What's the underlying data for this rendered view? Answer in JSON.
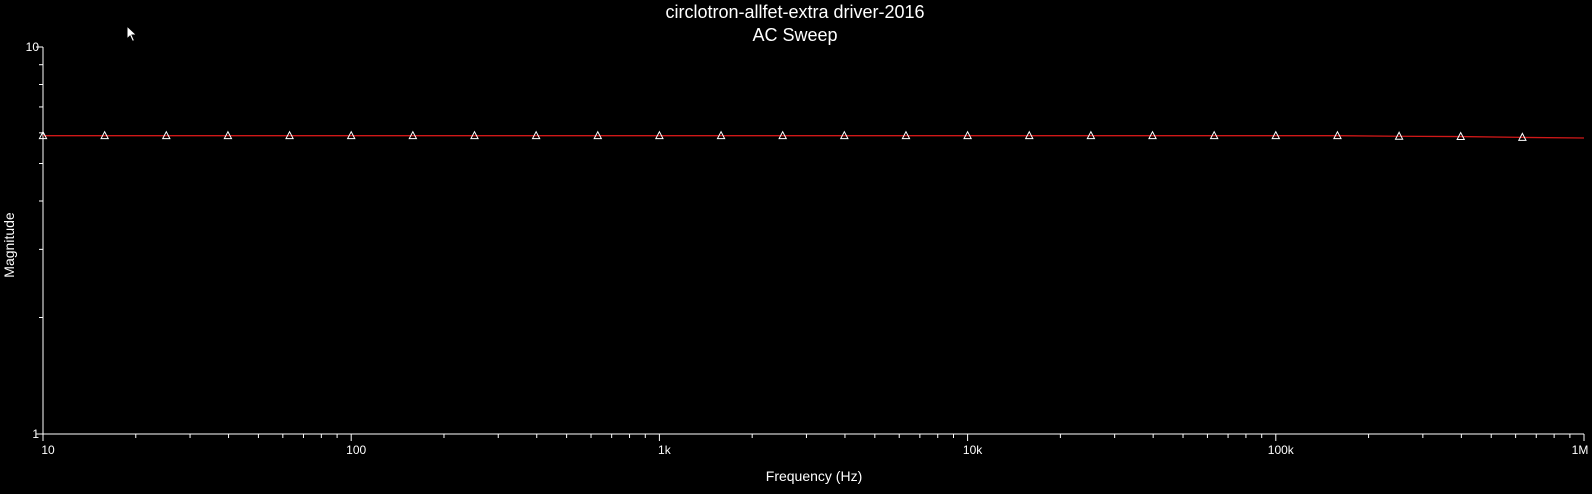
{
  "chart_data": {
    "type": "line",
    "title": "circlotron-allfet-extra driver-2016",
    "subtitle": "AC Sweep",
    "xlabel": "Frequency (Hz)",
    "ylabel": "Magnitude",
    "x_scale": "log",
    "y_scale": "log",
    "xlim": [
      10,
      1000000
    ],
    "ylim": [
      1,
      10
    ],
    "x_ticks": [
      {
        "value": 10,
        "label": "10"
      },
      {
        "value": 100,
        "label": "100"
      },
      {
        "value": 1000,
        "label": "1k"
      },
      {
        "value": 10000,
        "label": "10k"
      },
      {
        "value": 100000,
        "label": "100k"
      },
      {
        "value": 1000000,
        "label": "1M"
      }
    ],
    "y_ticks": [
      {
        "value": 10,
        "label": "10"
      },
      {
        "value": 1,
        "label": "1"
      }
    ],
    "grid": false,
    "legend": "none",
    "series": [
      {
        "color": "#d01818",
        "marker": "triangle",
        "marker_color": "#ffffff",
        "x": [
          10,
          15.85,
          25.12,
          39.81,
          63.1,
          100,
          158.5,
          251.2,
          398.1,
          631,
          1000,
          1585,
          2512,
          3981,
          6310,
          10000,
          15850,
          25120,
          39810,
          63100,
          100000,
          158500,
          251200,
          398100,
          631000,
          1000000
        ],
        "values": [
          5.9,
          5.9,
          5.9,
          5.9,
          5.9,
          5.9,
          5.9,
          5.9,
          5.9,
          5.9,
          5.9,
          5.9,
          5.9,
          5.9,
          5.9,
          5.9,
          5.9,
          5.9,
          5.9,
          5.9,
          5.9,
          5.9,
          5.88,
          5.87,
          5.84,
          5.82
        ]
      }
    ]
  },
  "colors": {
    "background": "#000000",
    "axis": "#ffffff",
    "text": "#ffffff",
    "trace": "#d01818"
  },
  "icons": {
    "cursor": "mouse-pointer-icon"
  }
}
